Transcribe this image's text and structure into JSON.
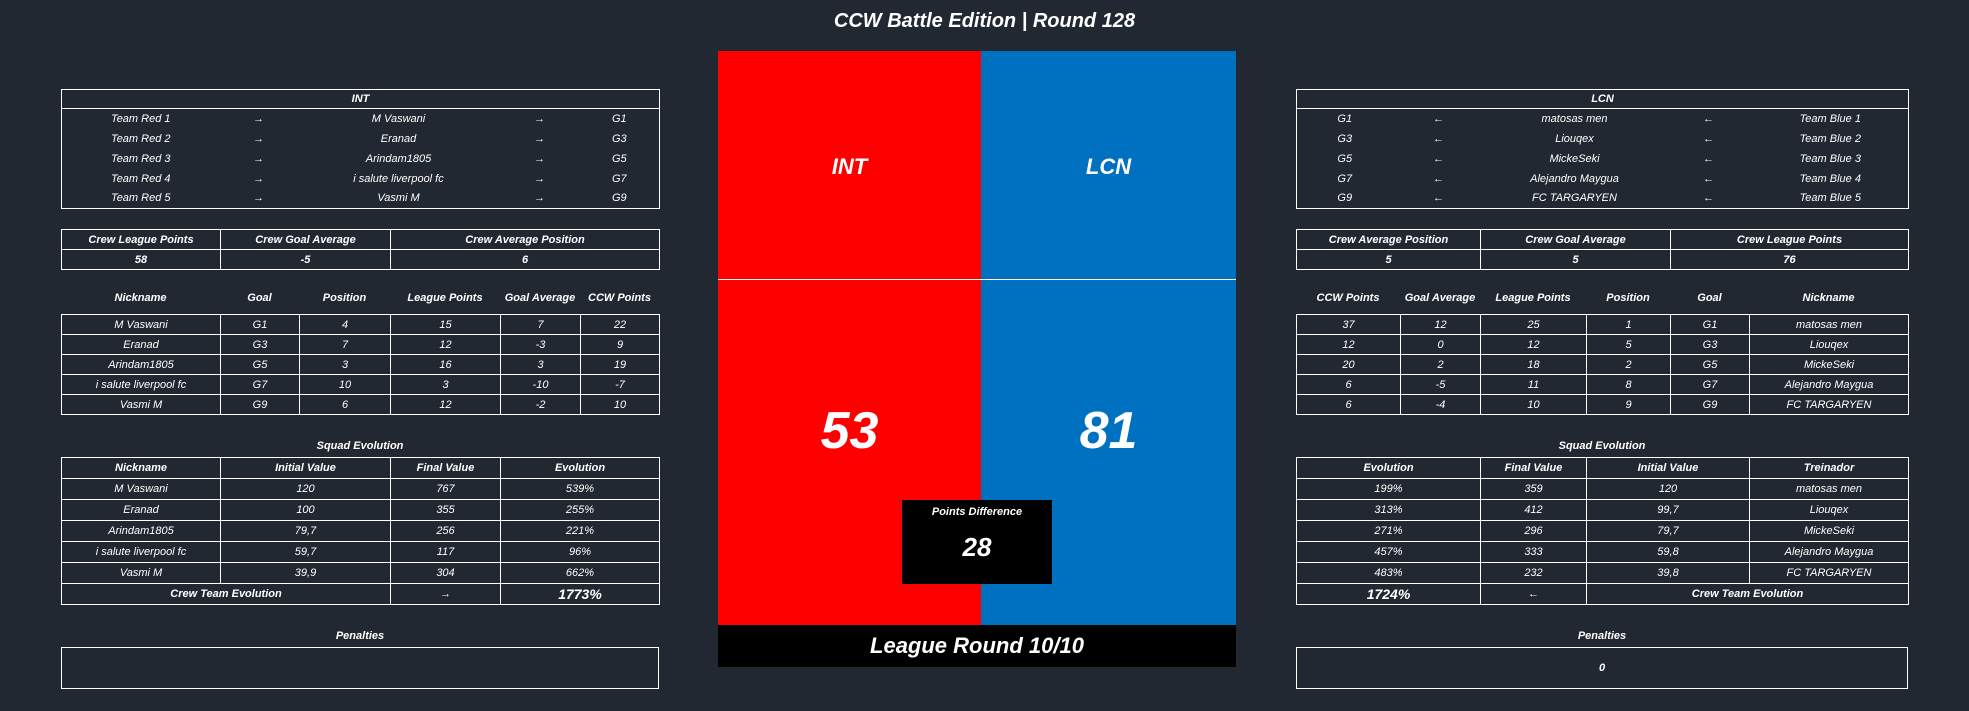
{
  "title": "CCW Battle Edition | Round 128",
  "center": {
    "red_team": "INT",
    "blue_team": "LCN",
    "red_score": "53",
    "blue_score": "81",
    "points_difference_label": "Points Difference",
    "points_difference": "28",
    "league_round": "League Round 10/10",
    "colors": {
      "red": "#ff0000",
      "blue": "#0070c0"
    }
  },
  "left": {
    "team": {
      "title": "INT",
      "rows": [
        [
          "Team Red 1",
          "→",
          "M Vaswani",
          "→",
          "G1"
        ],
        [
          "Team Red 2",
          "→",
          "Eranad",
          "→",
          "G3"
        ],
        [
          "Team Red 3",
          "→",
          "Arindam1805",
          "→",
          "G5"
        ],
        [
          "Team Red 4",
          "→",
          "i salute liverpool fc",
          "→",
          "G7"
        ],
        [
          "Team Red 5",
          "→",
          "Vasmi M",
          "→",
          "G9"
        ]
      ]
    },
    "crew": {
      "headers": [
        "Crew League Points",
        "Crew Goal Average",
        "Crew Average Position"
      ],
      "values": [
        "58",
        "-5",
        "6"
      ]
    },
    "players": {
      "headers": [
        "Nickname",
        "Goal",
        "Position",
        "League Points",
        "Goal Average",
        "CCW Points"
      ],
      "rows": [
        [
          "M Vaswani",
          "G1",
          "4",
          "15",
          "7",
          "22"
        ],
        [
          "Eranad",
          "G3",
          "7",
          "12",
          "-3",
          "9"
        ],
        [
          "Arindam1805",
          "G5",
          "3",
          "16",
          "3",
          "19"
        ],
        [
          "i salute liverpool fc",
          "G7",
          "10",
          "3",
          "-10",
          "-7"
        ],
        [
          "Vasmi M",
          "G9",
          "6",
          "12",
          "-2",
          "10"
        ]
      ]
    },
    "squad": {
      "title": "Squad Evolution",
      "headers": [
        "Nickname",
        "Initial Value",
        "Final Value",
        "Evolution"
      ],
      "rows": [
        [
          "M Vaswani",
          "120",
          "767",
          "539%"
        ],
        [
          "Eranad",
          "100",
          "355",
          "255%"
        ],
        [
          "Arindam1805",
          "79,7",
          "256",
          "221%"
        ],
        [
          "i salute liverpool fc",
          "59,7",
          "117",
          "96%"
        ],
        [
          "Vasmi M",
          "39,9",
          "304",
          "662%"
        ]
      ],
      "total_label": "Crew Team Evolution",
      "total_arrow": "→",
      "total_value": "1773%"
    },
    "penalties": {
      "title": "Penalties",
      "value": ""
    }
  },
  "right": {
    "team": {
      "title": "LCN",
      "rows": [
        [
          "G1",
          "←",
          "matosas men",
          "←",
          "Team Blue 1"
        ],
        [
          "G3",
          "←",
          "Liouqex",
          "←",
          "Team Blue 2"
        ],
        [
          "G5",
          "←",
          "MickeSeki",
          "←",
          "Team Blue 3"
        ],
        [
          "G7",
          "←",
          "Alejandro Maygua",
          "←",
          "Team Blue 4"
        ],
        [
          "G9",
          "←",
          "FC TARGARYEN",
          "←",
          "Team Blue 5"
        ]
      ]
    },
    "crew": {
      "headers": [
        "Crew Average Position",
        "Crew Goal Average",
        "Crew League Points"
      ],
      "values": [
        "5",
        "5",
        "76"
      ]
    },
    "players": {
      "headers": [
        "CCW Points",
        "Goal Average",
        "League Points",
        "Position",
        "Goal",
        "Nickname"
      ],
      "rows": [
        [
          "37",
          "12",
          "25",
          "1",
          "G1",
          "matosas men"
        ],
        [
          "12",
          "0",
          "12",
          "5",
          "G3",
          "Liouqex"
        ],
        [
          "20",
          "2",
          "18",
          "2",
          "G5",
          "MickeSeki"
        ],
        [
          "6",
          "-5",
          "11",
          "8",
          "G7",
          "Alejandro Maygua"
        ],
        [
          "6",
          "-4",
          "10",
          "9",
          "G9",
          "FC TARGARYEN"
        ]
      ]
    },
    "squad": {
      "title": "Squad Evolution",
      "headers": [
        "Evolution",
        "Final Value",
        "Initial Value",
        "Treinador"
      ],
      "rows": [
        [
          "199%",
          "359",
          "120",
          "matosas men"
        ],
        [
          "313%",
          "412",
          "99,7",
          "Liouqex"
        ],
        [
          "271%",
          "296",
          "79,7",
          "MickeSeki"
        ],
        [
          "457%",
          "333",
          "59,8",
          "Alejandro Maygua"
        ],
        [
          "483%",
          "232",
          "39,8",
          "FC TARGARYEN"
        ]
      ],
      "total_label": "Crew Team Evolution",
      "total_arrow": "←",
      "total_value": "1724%"
    },
    "penalties": {
      "title": "Penalties",
      "value": "0"
    }
  }
}
